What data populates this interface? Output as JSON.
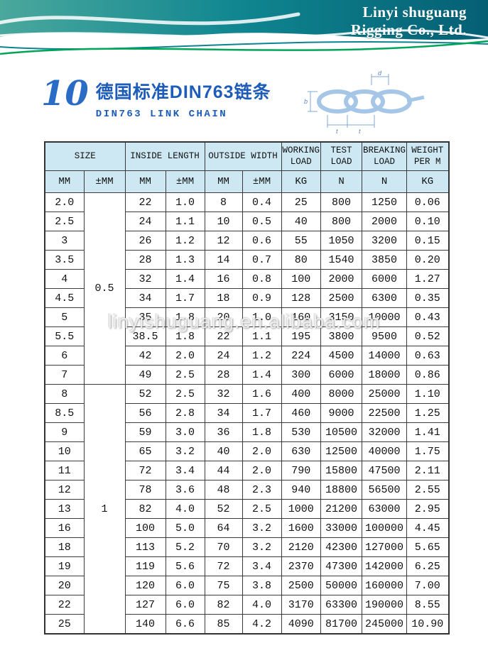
{
  "header": {
    "company_line1": "Linyi shuguang",
    "company_line2": "Rigging Co., Ltd."
  },
  "section": {
    "number": "10",
    "title_cn": "德国标准DIN763链条",
    "title_en": "DIN763 LINK CHAIN"
  },
  "diagram": {
    "labels": {
      "d": "d",
      "b": "b",
      "t1": "t",
      "t2": "t"
    }
  },
  "watermark": "linyishuguang.en.alibaba.com",
  "table": {
    "group_headers": [
      {
        "label": "SIZE",
        "span": 2
      },
      {
        "label": "INSIDE LENGTH",
        "span": 2
      },
      {
        "label": "OUTSIDE WIDTH",
        "span": 2
      },
      {
        "label": "WORKING LOAD",
        "span": 1
      },
      {
        "label": "TEST LOAD",
        "span": 1
      },
      {
        "label": "BREAKING LOAD",
        "span": 1
      },
      {
        "label": "WEIGHT PER M",
        "span": 1
      }
    ],
    "unit_headers": [
      "MM",
      "±MM",
      "MM",
      "±MM",
      "MM",
      "±MM",
      "KG",
      "N",
      "N",
      "KG"
    ],
    "tolerance_groups": [
      {
        "value": "0.5",
        "span": 10
      },
      {
        "value": "1",
        "span": 13
      }
    ],
    "rows": [
      [
        "2.0",
        "22",
        "1.0",
        "8",
        "0.4",
        "25",
        "800",
        "1250",
        "0.06"
      ],
      [
        "2.5",
        "24",
        "1.1",
        "10",
        "0.5",
        "40",
        "800",
        "2000",
        "0.10"
      ],
      [
        "3",
        "26",
        "1.2",
        "12",
        "0.6",
        "55",
        "1050",
        "3200",
        "0.15"
      ],
      [
        "3.5",
        "28",
        "1.3",
        "14",
        "0.7",
        "80",
        "1540",
        "3850",
        "0.20"
      ],
      [
        "4",
        "32",
        "1.4",
        "16",
        "0.8",
        "100",
        "2000",
        "6000",
        "1.27"
      ],
      [
        "4.5",
        "34",
        "1.7",
        "18",
        "0.9",
        "128",
        "2500",
        "6300",
        "0.35"
      ],
      [
        "5",
        "35",
        "1.8",
        "20",
        "1.0",
        "160",
        "3150",
        "10000",
        "0.43"
      ],
      [
        "5.5",
        "38.5",
        "1.8",
        "22",
        "1.1",
        "195",
        "3800",
        "9500",
        "0.52"
      ],
      [
        "6",
        "42",
        "2.0",
        "24",
        "1.2",
        "224",
        "4500",
        "14000",
        "0.63"
      ],
      [
        "7",
        "49",
        "2.5",
        "28",
        "1.4",
        "300",
        "6000",
        "18000",
        "0.86"
      ],
      [
        "8",
        "52",
        "2.5",
        "32",
        "1.6",
        "400",
        "8000",
        "25000",
        "1.10"
      ],
      [
        "8.5",
        "56",
        "2.8",
        "34",
        "1.7",
        "460",
        "9000",
        "22500",
        "1.25"
      ],
      [
        "9",
        "59",
        "3.0",
        "36",
        "1.8",
        "530",
        "10500",
        "32000",
        "1.41"
      ],
      [
        "10",
        "65",
        "3.2",
        "40",
        "2.0",
        "630",
        "12500",
        "40000",
        "1.75"
      ],
      [
        "11",
        "72",
        "3.4",
        "44",
        "2.0",
        "790",
        "15800",
        "47500",
        "2.11"
      ],
      [
        "12",
        "78",
        "3.6",
        "48",
        "2.3",
        "940",
        "18800",
        "56500",
        "2.55"
      ],
      [
        "13",
        "82",
        "4.0",
        "52",
        "2.5",
        "1000",
        "21200",
        "63000",
        "2.95"
      ],
      [
        "16",
        "100",
        "5.0",
        "64",
        "3.2",
        "1600",
        "33000",
        "100000",
        "4.45"
      ],
      [
        "18",
        "113",
        "5.2",
        "70",
        "3.2",
        "2120",
        "42300",
        "127000",
        "5.65"
      ],
      [
        "19",
        "119",
        "5.6",
        "72",
        "3.4",
        "2370",
        "47300",
        "142000",
        "6.25"
      ],
      [
        "20",
        "120",
        "6.0",
        "75",
        "3.8",
        "2500",
        "50000",
        "160000",
        "7.00"
      ],
      [
        "22",
        "127",
        "6.0",
        "82",
        "4.0",
        "3170",
        "63300",
        "190000",
        "8.55"
      ],
      [
        "25",
        "140",
        "6.6",
        "85",
        "4.2",
        "4090",
        "81700",
        "245000",
        "10.90"
      ]
    ]
  }
}
